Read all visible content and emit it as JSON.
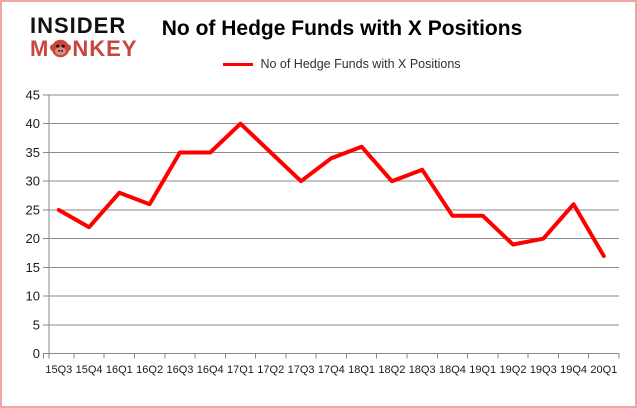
{
  "logo": {
    "line1": "INSIDER",
    "line2_pre": "M",
    "line2_post": "NKEY",
    "red": "#c9463c"
  },
  "header": {
    "title": "No of Hedge Funds with X Positions"
  },
  "legend": {
    "label": "No of Hedge Funds with X Positions",
    "color": "#ff0000"
  },
  "chart_data": {
    "type": "line",
    "title": "No of Hedge Funds with X Positions",
    "categories": [
      "15Q3",
      "15Q4",
      "16Q1",
      "16Q2",
      "16Q3",
      "16Q4",
      "17Q1",
      "17Q2",
      "17Q3",
      "17Q4",
      "18Q1",
      "18Q2",
      "18Q3",
      "18Q4",
      "19Q1",
      "19Q2",
      "19Q3",
      "19Q4",
      "20Q1"
    ],
    "series": [
      {
        "name": "No of Hedge Funds with X Positions",
        "color": "#ff0000",
        "values": [
          25,
          22,
          28,
          26,
          35,
          35,
          40,
          35,
          30,
          34,
          36,
          30,
          32,
          24,
          24,
          19,
          20,
          26,
          17
        ]
      }
    ],
    "xlabel": "",
    "ylabel": "",
    "ylim": [
      0,
      45
    ],
    "yticks": [
      0,
      5,
      10,
      15,
      20,
      25,
      30,
      35,
      40,
      45
    ],
    "grid": "horizontal",
    "legend_position": "top-center"
  },
  "colors": {
    "gridline": "#8a8a8a",
    "axis_text": "#1a1a1a",
    "border_pink": "#efa6a6",
    "series_red": "#ff0000",
    "logo_red": "#c9463c"
  }
}
